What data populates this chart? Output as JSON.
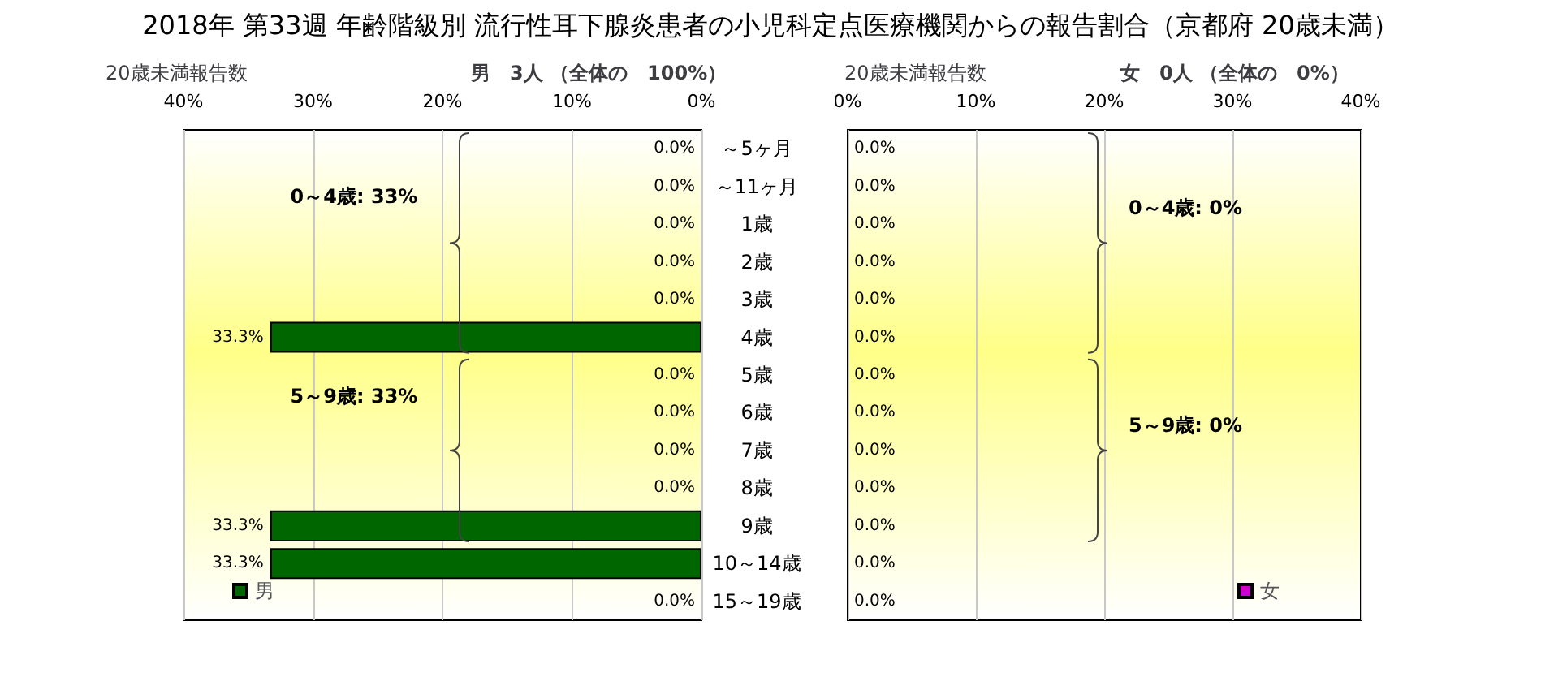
{
  "chart_data": [
    {
      "type": "bar",
      "title": "2018年 第33週 年齢階級別 流行性耳下腺炎患者の小児科定点医療機関からの報告割合（京都府 20歳未満）",
      "subtitle": "男　3人 （全体の　100%）",
      "xlabel": "20歳未満報告数",
      "orientation": "horizontal",
      "categories": [
        "～5ヶ月",
        "～11ヶ月",
        "1歳",
        "2歳",
        "3歳",
        "4歳",
        "5歳",
        "6歳",
        "7歳",
        "8歳",
        "9歳",
        "10～14歳",
        "15～19歳"
      ],
      "series": [
        {
          "name": "男",
          "color": "#006600",
          "values": [
            0,
            0,
            0,
            0,
            0,
            33.3,
            0,
            0,
            0,
            0,
            33.3,
            33.3,
            0
          ],
          "value_labels": [
            "0.0%",
            "0.0%",
            "0.0%",
            "0.0%",
            "0.0%",
            "33.3%",
            "0.0%",
            "0.0%",
            "0.0%",
            "0.0%",
            "33.3%",
            "33.3%",
            "0.0%"
          ]
        }
      ],
      "xlim": [
        40,
        0
      ],
      "xticks": [
        {
          "value": 40,
          "label": "40%"
        },
        {
          "value": 30,
          "label": "30%"
        },
        {
          "value": 20,
          "label": "20%"
        },
        {
          "value": 10,
          "label": "10%"
        },
        {
          "value": 0,
          "label": "0%"
        }
      ],
      "grid": "x",
      "legend": "bottom left",
      "annotations": [
        "0～4歳: 33%",
        "5～9歳: 33%"
      ]
    },
    {
      "type": "bar",
      "subtitle": "女　0人 （全体の　0%）",
      "xlabel": "20歳未満報告数",
      "orientation": "horizontal",
      "categories": [
        null,
        null,
        null,
        null,
        null,
        null,
        null,
        null,
        null,
        null,
        null,
        null,
        null
      ],
      "series": [
        {
          "name": "女",
          "color": "#cc00cc",
          "values": [
            0,
            0,
            0,
            0,
            0,
            0,
            0,
            0,
            0,
            0,
            0,
            0,
            0
          ],
          "value_labels": [
            "0.0%",
            "0.0%",
            "0.0%",
            "0.0%",
            "0.0%",
            "0.0%",
            "0.0%",
            "0.0%",
            "0.0%",
            "0.0%",
            "0.0%",
            "0.0%",
            "0.0%"
          ]
        }
      ],
      "xlim": [
        0,
        40
      ],
      "xticks": [
        {
          "value": 0,
          "label": "0%"
        },
        {
          "value": 10,
          "label": "10%"
        },
        {
          "value": 20,
          "label": "20%"
        },
        {
          "value": 30,
          "label": "30%"
        },
        {
          "value": 40,
          "label": "40%"
        }
      ],
      "grid": "x",
      "legend": "bottom right",
      "tick_labels": "x",
      "annotations": [
        "0～4歳: 0%",
        "5～9歳: 0%"
      ]
    }
  ]
}
